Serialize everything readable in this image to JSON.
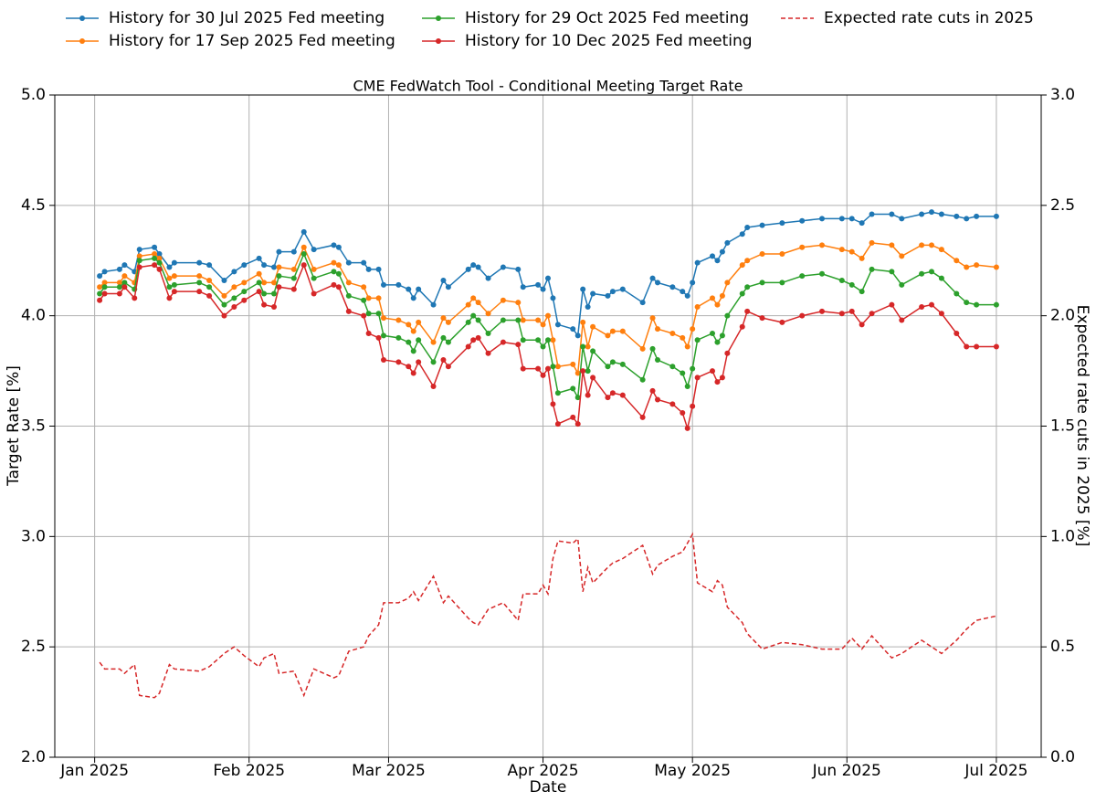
{
  "chart_data": {
    "type": "line",
    "title": "CME FedWatch Tool - Conditional Meeting Target Rate",
    "xlabel": "Date",
    "ylabel": "Target Rate [%]",
    "y2label": "Expected rate cuts in 2025 [%]",
    "x": [
      2,
      3,
      6,
      7,
      9,
      10,
      13,
      14,
      16,
      17,
      22,
      24,
      27,
      29,
      31,
      34,
      35,
      37,
      38,
      41,
      43,
      45,
      49,
      50,
      52,
      55,
      56,
      58,
      59,
      62,
      64,
      65,
      66,
      69,
      71,
      72,
      76,
      77,
      78,
      80,
      83,
      86,
      87,
      90,
      91,
      92,
      93,
      94,
      97,
      98,
      99,
      100,
      101,
      104,
      105,
      107,
      111,
      113,
      114,
      117,
      119,
      120,
      121,
      122,
      125,
      126,
      127,
      128,
      131,
      132,
      135,
      139,
      143,
      147,
      151,
      153,
      155,
      157,
      161,
      163,
      167,
      169,
      171,
      174,
      176,
      178,
      182
    ],
    "xlim": [
      -7,
      191
    ],
    "xticks": [
      {
        "value": 1,
        "label": "Jan 2025"
      },
      {
        "value": 32,
        "label": "Feb 2025"
      },
      {
        "value": 60,
        "label": "Mar 2025"
      },
      {
        "value": 91,
        "label": "Apr 2025"
      },
      {
        "value": 121,
        "label": "May 2025"
      },
      {
        "value": 152,
        "label": "Jun 2025"
      },
      {
        "value": 182,
        "label": "Jul 2025"
      }
    ],
    "ylim": [
      2,
      5
    ],
    "yticks": [
      {
        "value": 2,
        "label": "2.0"
      },
      2.5,
      {
        "value": 3,
        "label": "3.0"
      },
      3.5,
      {
        "value": 4,
        "label": "4.0"
      },
      4.5,
      {
        "value": 5,
        "label": "5.0"
      }
    ],
    "y2lim": [
      0,
      3
    ],
    "y2ticks": [
      {
        "value": 0,
        "label": "0.0"
      },
      0.5,
      {
        "value": 1,
        "label": "1.0"
      },
      1.5,
      {
        "value": 2,
        "label": "2.0"
      },
      2.5,
      {
        "value": 3,
        "label": "3.0"
      }
    ],
    "grid": true,
    "legend": "upper center",
    "series": [
      {
        "name": "History for 30 Jul 2025 Fed meeting",
        "color": "#1f77b4",
        "marker": true,
        "values": [
          4.18,
          4.2,
          4.21,
          4.23,
          4.2,
          4.3,
          4.31,
          4.28,
          4.22,
          4.24,
          4.24,
          4.23,
          4.16,
          4.2,
          4.23,
          4.26,
          4.23,
          4.22,
          4.29,
          4.29,
          4.38,
          4.3,
          4.32,
          4.31,
          4.24,
          4.24,
          4.21,
          4.21,
          4.14,
          4.14,
          4.12,
          4.08,
          4.12,
          4.05,
          4.16,
          4.13,
          4.21,
          4.23,
          4.22,
          4.17,
          4.22,
          4.21,
          4.13,
          4.14,
          4.12,
          4.17,
          4.08,
          3.96,
          3.94,
          3.91,
          4.12,
          4.04,
          4.1,
          4.09,
          4.11,
          4.12,
          4.06,
          4.17,
          4.15,
          4.13,
          4.11,
          4.09,
          4.15,
          4.24,
          4.27,
          4.25,
          4.29,
          4.33,
          4.37,
          4.4,
          4.41,
          4.42,
          4.43,
          4.44,
          4.44,
          4.44,
          4.42,
          4.46,
          4.46,
          4.44,
          4.46,
          4.47,
          4.46,
          4.45,
          4.44,
          4.45,
          4.45
        ]
      },
      {
        "name": "History for 17 Sep 2025 Fed meeting",
        "color": "#ff7f0e",
        "marker": true,
        "values": [
          4.13,
          4.15,
          4.15,
          4.18,
          4.15,
          4.27,
          4.28,
          4.26,
          4.17,
          4.18,
          4.18,
          4.16,
          4.09,
          4.13,
          4.15,
          4.19,
          4.15,
          4.15,
          4.22,
          4.21,
          4.31,
          4.21,
          4.24,
          4.23,
          4.15,
          4.13,
          4.08,
          4.08,
          3.99,
          3.98,
          3.96,
          3.93,
          3.97,
          3.88,
          3.99,
          3.97,
          4.05,
          4.08,
          4.06,
          4.01,
          4.07,
          4.06,
          3.98,
          3.98,
          3.96,
          4.0,
          3.89,
          3.77,
          3.78,
          3.74,
          3.97,
          3.86,
          3.95,
          3.91,
          3.93,
          3.93,
          3.85,
          3.99,
          3.94,
          3.92,
          3.9,
          3.86,
          3.94,
          4.04,
          4.08,
          4.05,
          4.09,
          4.15,
          4.23,
          4.25,
          4.28,
          4.28,
          4.31,
          4.32,
          4.3,
          4.29,
          4.26,
          4.33,
          4.32,
          4.27,
          4.32,
          4.32,
          4.3,
          4.25,
          4.22,
          4.23,
          4.22
        ]
      },
      {
        "name": "History for 29 Oct 2025 Fed meeting",
        "color": "#2ca02c",
        "marker": true,
        "values": [
          4.1,
          4.13,
          4.13,
          4.15,
          4.12,
          4.25,
          4.26,
          4.24,
          4.13,
          4.14,
          4.15,
          4.13,
          4.05,
          4.08,
          4.11,
          4.15,
          4.1,
          4.1,
          4.18,
          4.17,
          4.28,
          4.17,
          4.2,
          4.19,
          4.09,
          4.07,
          4.01,
          4.01,
          3.91,
          3.9,
          3.88,
          3.84,
          3.89,
          3.79,
          3.9,
          3.88,
          3.97,
          4.0,
          3.98,
          3.92,
          3.98,
          3.98,
          3.89,
          3.89,
          3.86,
          3.89,
          3.77,
          3.65,
          3.67,
          3.63,
          3.86,
          3.75,
          3.84,
          3.77,
          3.79,
          3.78,
          3.71,
          3.85,
          3.8,
          3.77,
          3.74,
          3.68,
          3.76,
          3.89,
          3.92,
          3.88,
          3.91,
          4.0,
          4.1,
          4.13,
          4.15,
          4.15,
          4.18,
          4.19,
          4.16,
          4.14,
          4.11,
          4.21,
          4.2,
          4.14,
          4.19,
          4.2,
          4.17,
          4.1,
          4.06,
          4.05,
          4.05
        ]
      },
      {
        "name": "History for 10 Dec 2025 Fed meeting",
        "color": "#d62728",
        "marker": true,
        "values": [
          4.07,
          4.1,
          4.1,
          4.13,
          4.08,
          4.22,
          4.23,
          4.21,
          4.08,
          4.11,
          4.11,
          4.09,
          4.0,
          4.04,
          4.07,
          4.11,
          4.05,
          4.04,
          4.13,
          4.12,
          4.23,
          4.1,
          4.14,
          4.13,
          4.02,
          4.0,
          3.92,
          3.9,
          3.8,
          3.79,
          3.77,
          3.74,
          3.79,
          3.68,
          3.8,
          3.77,
          3.86,
          3.89,
          3.9,
          3.83,
          3.88,
          3.87,
          3.76,
          3.76,
          3.73,
          3.76,
          3.6,
          3.51,
          3.54,
          3.51,
          3.75,
          3.64,
          3.72,
          3.63,
          3.65,
          3.64,
          3.54,
          3.66,
          3.62,
          3.6,
          3.56,
          3.49,
          3.59,
          3.72,
          3.75,
          3.7,
          3.72,
          3.83,
          3.95,
          4.02,
          3.99,
          3.97,
          4.0,
          4.02,
          4.01,
          4.02,
          3.96,
          4.01,
          4.05,
          3.98,
          4.04,
          4.05,
          4.01,
          3.92,
          3.86,
          3.86,
          3.86
        ]
      },
      {
        "name": "Expected rate cuts in 2025",
        "color": "#d62728",
        "dashed": true,
        "axis": "y2",
        "values": [
          0.43,
          0.4,
          0.4,
          0.38,
          0.42,
          0.28,
          0.27,
          0.29,
          0.42,
          0.4,
          0.39,
          0.41,
          0.47,
          0.5,
          0.46,
          0.41,
          0.45,
          0.47,
          0.38,
          0.39,
          0.28,
          0.4,
          0.36,
          0.37,
          0.48,
          0.5,
          0.55,
          0.6,
          0.7,
          0.7,
          0.72,
          0.75,
          0.71,
          0.82,
          0.7,
          0.73,
          0.63,
          0.61,
          0.6,
          0.67,
          0.7,
          0.62,
          0.74,
          0.74,
          0.78,
          0.74,
          0.9,
          0.98,
          0.97,
          0.99,
          0.75,
          0.86,
          0.79,
          0.86,
          0.88,
          0.9,
          0.96,
          0.83,
          0.87,
          0.91,
          0.93,
          0.97,
          1.01,
          0.79,
          0.75,
          0.8,
          0.78,
          0.68,
          0.61,
          0.56,
          0.49,
          0.52,
          0.51,
          0.49,
          0.49,
          0.54,
          0.49,
          0.55,
          0.45,
          0.47,
          0.53,
          0.5,
          0.47,
          0.53,
          0.58,
          0.62,
          0.64
        ]
      }
    ]
  }
}
